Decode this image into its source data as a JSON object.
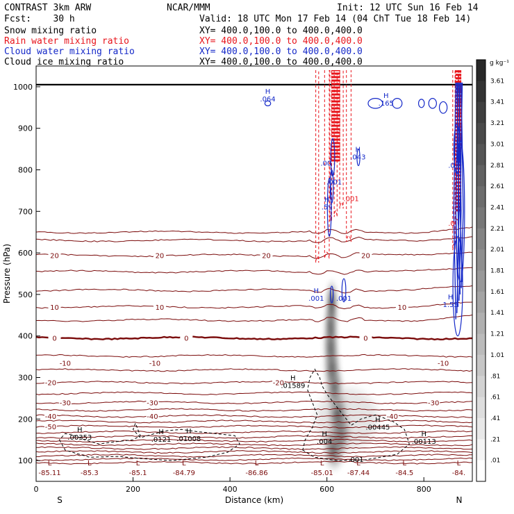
{
  "header": {
    "line1_left": "CONTRAST  3km ARW",
    "line1_center": "NCAR/MMM",
    "line1_right": "Init: 12 UTC Sun 16 Feb 14",
    "line2_left": "Fcst:    30 h",
    "line2_right": "Valid: 18 UTC Mon 17 Feb 14 (04 ChT Tue 18 Feb 14)",
    "fields": [
      {
        "name": "Snow mixing ratio",
        "xy": "XY= 400.0,100.0 to 400.0,400.0",
        "color": "#000000"
      },
      {
        "name": "Rain water mixing ratio",
        "xy": "XY= 400.0,100.0 to 400.0,400.0",
        "color": "#e8141b"
      },
      {
        "name": "Cloud water mixing ratio",
        "xy": "XY= 400.0,100.0 to 400.0,400.0",
        "color": "#1428c8"
      },
      {
        "name": "Cloud ice mixing ratio",
        "xy": "XY= 400.0,100.0 to 400.0,400.0",
        "color": "#000000"
      }
    ]
  },
  "colors": {
    "temperature": "#7a0a0a",
    "rain": "#e8141b",
    "cloud_water": "#1428c8",
    "cloud_ice": "#000000",
    "frame": "#000000"
  },
  "chart_data": {
    "type": "cross-section",
    "xlabel": "Distance (km)",
    "ylabel": "Pressure (hPa)",
    "xlim": [
      0,
      900
    ],
    "ylim": [
      1050,
      50
    ],
    "x_ticks": [
      0,
      200,
      400,
      600,
      800
    ],
    "y_ticks": [
      100,
      200,
      300,
      400,
      500,
      600,
      700,
      800,
      900,
      1000
    ],
    "endpoint_labels": {
      "left": "S",
      "right": "N"
    },
    "colorbar": {
      "unit": "g kg⁻¹",
      "ticks": [
        "3.61",
        "3.41",
        "3.21",
        "3.01",
        "2.81",
        "2.61",
        "2.41",
        "2.21",
        "2.01",
        "1.81",
        "1.61",
        "1.41",
        "1.21",
        "1.01",
        ".81",
        ".61",
        ".41",
        ".21",
        ".01"
      ]
    },
    "temperature_contours": [
      {
        "label": "-50",
        "p": 182,
        "x": 30
      },
      {
        "label": "-40",
        "p": 207,
        "x": 30
      },
      {
        "label": "-40",
        "p": 207,
        "x": 240
      },
      {
        "label": "-40",
        "p": 207,
        "x": 735
      },
      {
        "label": "-30",
        "p": 240,
        "x": 60
      },
      {
        "label": "-30",
        "p": 240,
        "x": 240
      },
      {
        "label": "-30",
        "p": 240,
        "x": 820
      },
      {
        "label": "-20",
        "p": 288,
        "x": 30
      },
      {
        "label": "-20",
        "p": 288,
        "x": 500
      },
      {
        "label": "-10",
        "p": 335,
        "x": 60
      },
      {
        "label": "-10",
        "p": 335,
        "x": 245
      },
      {
        "label": "-10",
        "p": 335,
        "x": 840
      },
      {
        "label": "0",
        "p": 395,
        "x": 38
      },
      {
        "label": "0",
        "p": 395,
        "x": 310
      },
      {
        "label": "0",
        "p": 395,
        "x": 680
      },
      {
        "label": "10",
        "p": 470,
        "x": 38
      },
      {
        "label": "10",
        "p": 470,
        "x": 255
      },
      {
        "label": "10",
        "p": 470,
        "x": 755
      },
      {
        "label": "20",
        "p": 594,
        "x": 38
      },
      {
        "label": "20",
        "p": 594,
        "x": 255
      },
      {
        "label": "20",
        "p": 594,
        "x": 475
      },
      {
        "label": "20",
        "p": 594,
        "x": 680
      }
    ],
    "highs_lows": [
      {
        "type": "L",
        "value": "-85.11",
        "x": 28
      },
      {
        "type": "L",
        "value": "-85.3",
        "x": 110
      },
      {
        "type": "L",
        "value": "-85.1",
        "x": 210
      },
      {
        "type": "L",
        "value": "-84.79",
        "x": 305
      },
      {
        "type": "L",
        "value": "-86.86",
        "x": 455
      },
      {
        "type": "L",
        "value": "-85.01",
        "x": 590
      },
      {
        "type": "L",
        "value": "-87.44",
        "x": 665
      },
      {
        "type": "L",
        "value": "-84.5",
        "x": 760
      },
      {
        "type": "L",
        "value": "-84.",
        "x": 872
      }
    ],
    "maxima_labels": [
      {
        "type": "H",
        "value": ".00353",
        "x": 90,
        "p": 155,
        "color": "#000000"
      },
      {
        "type": "H",
        "value": ".0121",
        "x": 258,
        "p": 150,
        "color": "#000000"
      },
      {
        "type": "H",
        "value": ".01008",
        "x": 315,
        "p": 152,
        "color": "#000000"
      },
      {
        "type": "H",
        "value": ".004",
        "x": 595,
        "p": 145,
        "color": "#000000"
      },
      {
        "type": "",
        "value": ".001",
        "x": 660,
        "p": 102,
        "color": "#000000"
      },
      {
        "type": "H",
        "value": ".00113",
        "x": 800,
        "p": 145,
        "color": "#000000"
      },
      {
        "type": "H",
        "value": ".00445",
        "x": 705,
        "p": 180,
        "color": "#000000"
      },
      {
        "type": "H",
        "value": ".01589",
        "x": 530,
        "p": 280,
        "color": "#000000"
      },
      {
        "type": "H",
        "value": ".001",
        "x": 578,
        "p": 490,
        "color": "#1428c8"
      },
      {
        "type": "",
        "value": ".001",
        "x": 635,
        "p": 490,
        "color": "#1428c8"
      },
      {
        "type": "",
        "value": ".001",
        "x": 650,
        "p": 730,
        "color": "#e8141b"
      },
      {
        "type": "H",
        "value": ".59",
        "x": 600,
        "p": 710,
        "color": "#1428c8"
      },
      {
        "type": "",
        "value": ".001",
        "x": 615,
        "p": 770,
        "color": "#1428c8"
      },
      {
        "type": "",
        "value": ".00",
        "x": 598,
        "p": 815,
        "color": "#1428c8"
      },
      {
        "type": "H",
        "value": ".043",
        "x": 664,
        "p": 830,
        "color": "#1428c8"
      },
      {
        "type": "H",
        "value": ".064",
        "x": 478,
        "p": 970,
        "color": "#1428c8"
      },
      {
        "type": "H",
        "value": ".165",
        "x": 722,
        "p": 960,
        "color": "#1428c8"
      },
      {
        "type": "H",
        "value": "1.55",
        "x": 855,
        "p": 475,
        "color": "#1428c8"
      },
      {
        "type": "",
        "value": ".0",
        "x": 857,
        "p": 670,
        "color": "#e8141b"
      },
      {
        "type": "",
        "value": ".0",
        "x": 857,
        "p": 810,
        "color": "#1428c8"
      }
    ]
  }
}
